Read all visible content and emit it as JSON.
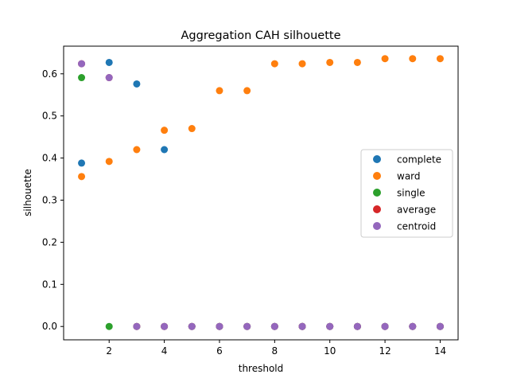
{
  "chart_data": {
    "type": "scatter",
    "title": "Aggregation CAH silhouette",
    "xlabel": "threshold",
    "ylabel": "silhouette",
    "xlim": [
      0.35,
      14.65
    ],
    "ylim": [
      -0.0317,
      0.6657
    ],
    "xticks": [
      2,
      4,
      6,
      8,
      10,
      12,
      14
    ],
    "yticks": [
      0.0,
      0.1,
      0.2,
      0.3,
      0.4,
      0.5,
      0.6
    ],
    "ytick_labels": [
      "0.0",
      "0.1",
      "0.2",
      "0.3",
      "0.4",
      "0.5",
      "0.6"
    ],
    "grid": false,
    "legend_position": "center-right",
    "x": [
      1,
      2,
      3,
      4,
      5,
      6,
      7,
      8,
      9,
      10,
      11,
      12,
      13,
      14
    ],
    "series": [
      {
        "name": "complete",
        "color": "#1f77b4",
        "values": [
          0.388,
          0.627,
          0.576,
          0.42,
          0,
          0,
          0,
          0,
          0,
          0,
          0,
          0,
          0,
          0
        ]
      },
      {
        "name": "ward",
        "color": "#ff7f0e",
        "values": [
          0.356,
          0.392,
          0.42,
          0.466,
          0.47,
          0.56,
          0.56,
          0.624,
          0.624,
          0.627,
          0.627,
          0.636,
          0.636,
          0.636
        ]
      },
      {
        "name": "single",
        "color": "#2ca02c",
        "values": [
          0.591,
          0,
          0,
          0,
          0,
          0,
          0,
          0,
          0,
          0,
          0,
          0,
          0,
          0
        ]
      },
      {
        "name": "average",
        "color": "#d62728",
        "values": [
          0.624,
          0.591,
          0,
          0,
          0,
          0,
          0,
          0,
          0,
          0,
          0,
          0,
          0,
          0
        ]
      },
      {
        "name": "centroid",
        "color": "#9467bd",
        "values": [
          0.624,
          0.591,
          0,
          0,
          0,
          0,
          0,
          0,
          0,
          0,
          0,
          0,
          0,
          0
        ]
      }
    ]
  }
}
